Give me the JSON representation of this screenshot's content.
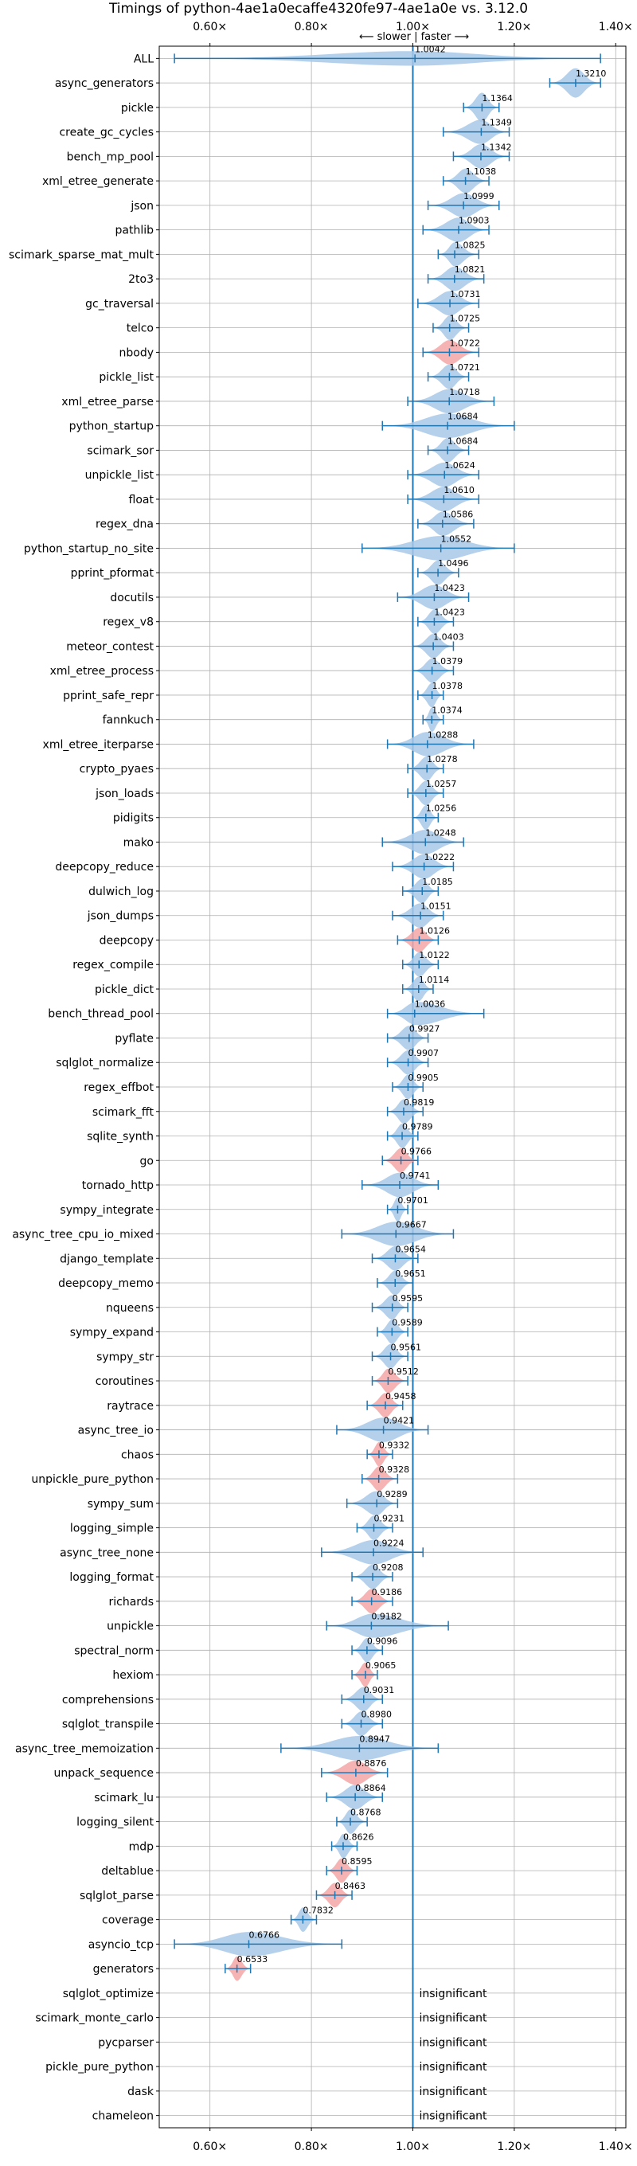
{
  "chart_data": {
    "type": "violin",
    "title": "Timings of python-4ae1a0ecaffe4320fe97-4ae1a0e vs. 3.12.0",
    "subtitle": "⟵ slower | faster ⟶",
    "xlim": [
      0.5,
      1.42
    ],
    "xticks": [
      0.6,
      0.8,
      1.0,
      1.2,
      1.4
    ],
    "xtick_labels": [
      "0.60×",
      "0.80×",
      "1.00×",
      "1.20×",
      "1.40×"
    ],
    "reference_line": 1.0,
    "grid": true,
    "colors": {
      "faster": "#a8c8e8",
      "slower": "#f4a6a6",
      "line": "#1f77b4"
    },
    "insignificant_label": "insignificant",
    "benchmarks": [
      {
        "name": "ALL",
        "value": "1.0042",
        "mean": 1.0042,
        "min": 0.53,
        "max": 1.37,
        "width": 0.3,
        "color": "faster"
      },
      {
        "name": "async_generators",
        "value": "1.3210",
        "mean": 1.321,
        "min": 1.27,
        "max": 1.37,
        "width": 0.6,
        "color": "faster"
      },
      {
        "name": "pickle",
        "value": "1.1364",
        "mean": 1.1364,
        "min": 1.1,
        "max": 1.17,
        "width": 0.6,
        "color": "faster"
      },
      {
        "name": "create_gc_cycles",
        "value": "1.1349",
        "mean": 1.1349,
        "min": 1.06,
        "max": 1.19,
        "width": 0.5,
        "color": "faster"
      },
      {
        "name": "bench_mp_pool",
        "value": "1.1342",
        "mean": 1.1342,
        "min": 1.08,
        "max": 1.19,
        "width": 0.5,
        "color": "faster"
      },
      {
        "name": "xml_etree_generate",
        "value": "1.1038",
        "mean": 1.1038,
        "min": 1.06,
        "max": 1.15,
        "width": 0.5,
        "color": "faster"
      },
      {
        "name": "json",
        "value": "1.0999",
        "mean": 1.0999,
        "min": 1.03,
        "max": 1.17,
        "width": 0.5,
        "color": "faster"
      },
      {
        "name": "pathlib",
        "value": "1.0903",
        "mean": 1.0903,
        "min": 1.02,
        "max": 1.15,
        "width": 0.5,
        "color": "faster"
      },
      {
        "name": "scimark_sparse_mat_mult",
        "value": "1.0825",
        "mean": 1.0825,
        "min": 1.05,
        "max": 1.13,
        "width": 0.5,
        "color": "faster"
      },
      {
        "name": "2to3",
        "value": "1.0821",
        "mean": 1.0821,
        "min": 1.03,
        "max": 1.14,
        "width": 0.5,
        "color": "faster"
      },
      {
        "name": "gc_traversal",
        "value": "1.0731",
        "mean": 1.0731,
        "min": 1.01,
        "max": 1.13,
        "width": 0.5,
        "color": "faster"
      },
      {
        "name": "telco",
        "value": "1.0725",
        "mean": 1.0725,
        "min": 1.04,
        "max": 1.11,
        "width": 0.5,
        "color": "faster"
      },
      {
        "name": "nbody",
        "value": "1.0722",
        "mean": 1.0722,
        "min": 1.02,
        "max": 1.13,
        "width": 0.5,
        "color": "slower"
      },
      {
        "name": "pickle_list",
        "value": "1.0721",
        "mean": 1.0721,
        "min": 1.03,
        "max": 1.11,
        "width": 0.5,
        "color": "faster"
      },
      {
        "name": "xml_etree_parse",
        "value": "1.0718",
        "mean": 1.0718,
        "min": 0.99,
        "max": 1.16,
        "width": 0.5,
        "color": "faster"
      },
      {
        "name": "python_startup",
        "value": "1.0684",
        "mean": 1.0684,
        "min": 0.94,
        "max": 1.2,
        "width": 0.5,
        "color": "faster"
      },
      {
        "name": "scimark_sor",
        "value": "1.0684",
        "mean": 1.0684,
        "min": 1.03,
        "max": 1.11,
        "width": 0.5,
        "color": "faster"
      },
      {
        "name": "unpickle_list",
        "value": "1.0624",
        "mean": 1.0624,
        "min": 0.99,
        "max": 1.13,
        "width": 0.5,
        "color": "faster"
      },
      {
        "name": "float",
        "value": "1.0610",
        "mean": 1.061,
        "min": 0.99,
        "max": 1.13,
        "width": 0.5,
        "color": "faster"
      },
      {
        "name": "regex_dna",
        "value": "1.0586",
        "mean": 1.0586,
        "min": 1.01,
        "max": 1.12,
        "width": 0.5,
        "color": "faster"
      },
      {
        "name": "python_startup_no_site",
        "value": "1.0552",
        "mean": 1.0552,
        "min": 0.9,
        "max": 1.2,
        "width": 0.5,
        "color": "faster"
      },
      {
        "name": "pprint_pformat",
        "value": "1.0496",
        "mean": 1.0496,
        "min": 1.01,
        "max": 1.09,
        "width": 0.5,
        "color": "faster"
      },
      {
        "name": "docutils",
        "value": "1.0423",
        "mean": 1.0423,
        "min": 0.97,
        "max": 1.11,
        "width": 0.5,
        "color": "faster"
      },
      {
        "name": "regex_v8",
        "value": "1.0423",
        "mean": 1.0423,
        "min": 1.01,
        "max": 1.08,
        "width": 0.5,
        "color": "faster"
      },
      {
        "name": "meteor_contest",
        "value": "1.0403",
        "mean": 1.0403,
        "min": 1.0,
        "max": 1.08,
        "width": 0.5,
        "color": "faster"
      },
      {
        "name": "xml_etree_process",
        "value": "1.0379",
        "mean": 1.0379,
        "min": 1.0,
        "max": 1.08,
        "width": 0.5,
        "color": "faster"
      },
      {
        "name": "pprint_safe_repr",
        "value": "1.0378",
        "mean": 1.0378,
        "min": 1.01,
        "max": 1.06,
        "width": 0.5,
        "color": "faster"
      },
      {
        "name": "fannkuch",
        "value": "1.0374",
        "mean": 1.0374,
        "min": 1.02,
        "max": 1.06,
        "width": 0.5,
        "color": "faster"
      },
      {
        "name": "xml_etree_iterparse",
        "value": "1.0288",
        "mean": 1.0288,
        "min": 0.95,
        "max": 1.12,
        "width": 0.5,
        "color": "faster"
      },
      {
        "name": "crypto_pyaes",
        "value": "1.0278",
        "mean": 1.0278,
        "min": 0.99,
        "max": 1.06,
        "width": 0.5,
        "color": "faster"
      },
      {
        "name": "json_loads",
        "value": "1.0257",
        "mean": 1.0257,
        "min": 0.99,
        "max": 1.06,
        "width": 0.5,
        "color": "faster"
      },
      {
        "name": "pidigits",
        "value": "1.0256",
        "mean": 1.0256,
        "min": 1.0,
        "max": 1.05,
        "width": 0.5,
        "color": "faster"
      },
      {
        "name": "mako",
        "value": "1.0248",
        "mean": 1.0248,
        "min": 0.94,
        "max": 1.1,
        "width": 0.5,
        "color": "faster"
      },
      {
        "name": "deepcopy_reduce",
        "value": "1.0222",
        "mean": 1.0222,
        "min": 0.96,
        "max": 1.08,
        "width": 0.5,
        "color": "faster"
      },
      {
        "name": "dulwich_log",
        "value": "1.0185",
        "mean": 1.0185,
        "min": 0.98,
        "max": 1.05,
        "width": 0.5,
        "color": "faster"
      },
      {
        "name": "json_dumps",
        "value": "1.0151",
        "mean": 1.0151,
        "min": 0.96,
        "max": 1.06,
        "width": 0.5,
        "color": "faster"
      },
      {
        "name": "deepcopy",
        "value": "1.0126",
        "mean": 1.0126,
        "min": 0.97,
        "max": 1.05,
        "width": 0.5,
        "color": "slower"
      },
      {
        "name": "regex_compile",
        "value": "1.0122",
        "mean": 1.0122,
        "min": 0.98,
        "max": 1.05,
        "width": 0.5,
        "color": "faster"
      },
      {
        "name": "pickle_dict",
        "value": "1.0114",
        "mean": 1.0114,
        "min": 0.98,
        "max": 1.04,
        "width": 0.5,
        "color": "faster"
      },
      {
        "name": "bench_thread_pool",
        "value": "1.0036",
        "mean": 1.0036,
        "min": 0.95,
        "max": 1.14,
        "width": 0.5,
        "color": "faster"
      },
      {
        "name": "pyflate",
        "value": "0.9927",
        "mean": 0.9927,
        "min": 0.95,
        "max": 1.03,
        "width": 0.5,
        "color": "faster"
      },
      {
        "name": "sqlglot_normalize",
        "value": "0.9907",
        "mean": 0.9907,
        "min": 0.95,
        "max": 1.03,
        "width": 0.5,
        "color": "faster"
      },
      {
        "name": "regex_effbot",
        "value": "0.9905",
        "mean": 0.9905,
        "min": 0.96,
        "max": 1.02,
        "width": 0.5,
        "color": "faster"
      },
      {
        "name": "scimark_fft",
        "value": "0.9819",
        "mean": 0.9819,
        "min": 0.95,
        "max": 1.02,
        "width": 0.5,
        "color": "faster"
      },
      {
        "name": "sqlite_synth",
        "value": "0.9789",
        "mean": 0.9789,
        "min": 0.95,
        "max": 1.01,
        "width": 0.5,
        "color": "faster"
      },
      {
        "name": "go",
        "value": "0.9766",
        "mean": 0.9766,
        "min": 0.94,
        "max": 1.01,
        "width": 0.5,
        "color": "slower"
      },
      {
        "name": "tornado_http",
        "value": "0.9741",
        "mean": 0.9741,
        "min": 0.9,
        "max": 1.05,
        "width": 0.5,
        "color": "faster"
      },
      {
        "name": "sympy_integrate",
        "value": "0.9701",
        "mean": 0.9701,
        "min": 0.95,
        "max": 0.99,
        "width": 0.5,
        "color": "faster"
      },
      {
        "name": "async_tree_cpu_io_mixed",
        "value": "0.9667",
        "mean": 0.9667,
        "min": 0.86,
        "max": 1.08,
        "width": 0.5,
        "color": "faster"
      },
      {
        "name": "django_template",
        "value": "0.9654",
        "mean": 0.9654,
        "min": 0.92,
        "max": 1.01,
        "width": 0.5,
        "color": "faster"
      },
      {
        "name": "deepcopy_memo",
        "value": "0.9651",
        "mean": 0.9651,
        "min": 0.93,
        "max": 1.0,
        "width": 0.5,
        "color": "faster"
      },
      {
        "name": "nqueens",
        "value": "0.9595",
        "mean": 0.9595,
        "min": 0.92,
        "max": 0.99,
        "width": 0.5,
        "color": "faster"
      },
      {
        "name": "sympy_expand",
        "value": "0.9589",
        "mean": 0.9589,
        "min": 0.93,
        "max": 0.99,
        "width": 0.5,
        "color": "faster"
      },
      {
        "name": "sympy_str",
        "value": "0.9561",
        "mean": 0.9561,
        "min": 0.92,
        "max": 0.99,
        "width": 0.5,
        "color": "faster"
      },
      {
        "name": "coroutines",
        "value": "0.9512",
        "mean": 0.9512,
        "min": 0.92,
        "max": 0.99,
        "width": 0.5,
        "color": "slower"
      },
      {
        "name": "raytrace",
        "value": "0.9458",
        "mean": 0.9458,
        "min": 0.91,
        "max": 0.98,
        "width": 0.5,
        "color": "slower"
      },
      {
        "name": "async_tree_io",
        "value": "0.9421",
        "mean": 0.9421,
        "min": 0.85,
        "max": 1.03,
        "width": 0.5,
        "color": "faster"
      },
      {
        "name": "chaos",
        "value": "0.9332",
        "mean": 0.9332,
        "min": 0.91,
        "max": 0.96,
        "width": 0.5,
        "color": "slower"
      },
      {
        "name": "unpickle_pure_python",
        "value": "0.9328",
        "mean": 0.9328,
        "min": 0.9,
        "max": 0.97,
        "width": 0.5,
        "color": "slower"
      },
      {
        "name": "sympy_sum",
        "value": "0.9289",
        "mean": 0.9289,
        "min": 0.87,
        "max": 0.97,
        "width": 0.5,
        "color": "faster"
      },
      {
        "name": "logging_simple",
        "value": "0.9231",
        "mean": 0.9231,
        "min": 0.89,
        "max": 0.96,
        "width": 0.5,
        "color": "faster"
      },
      {
        "name": "async_tree_none",
        "value": "0.9224",
        "mean": 0.9224,
        "min": 0.82,
        "max": 1.02,
        "width": 0.5,
        "color": "faster"
      },
      {
        "name": "logging_format",
        "value": "0.9208",
        "mean": 0.9208,
        "min": 0.88,
        "max": 0.96,
        "width": 0.5,
        "color": "faster"
      },
      {
        "name": "richards",
        "value": "0.9186",
        "mean": 0.9186,
        "min": 0.88,
        "max": 0.96,
        "width": 0.5,
        "color": "slower"
      },
      {
        "name": "unpickle",
        "value": "0.9182",
        "mean": 0.9182,
        "min": 0.83,
        "max": 1.07,
        "width": 0.5,
        "color": "faster"
      },
      {
        "name": "spectral_norm",
        "value": "0.9096",
        "mean": 0.9096,
        "min": 0.88,
        "max": 0.94,
        "width": 0.5,
        "color": "faster"
      },
      {
        "name": "hexiom",
        "value": "0.9065",
        "mean": 0.9065,
        "min": 0.88,
        "max": 0.93,
        "width": 0.5,
        "color": "slower"
      },
      {
        "name": "comprehensions",
        "value": "0.9031",
        "mean": 0.9031,
        "min": 0.86,
        "max": 0.94,
        "width": 0.5,
        "color": "faster"
      },
      {
        "name": "sqlglot_transpile",
        "value": "0.8980",
        "mean": 0.898,
        "min": 0.86,
        "max": 0.94,
        "width": 0.5,
        "color": "faster"
      },
      {
        "name": "async_tree_memoization",
        "value": "0.8947",
        "mean": 0.8947,
        "min": 0.74,
        "max": 1.05,
        "width": 0.5,
        "color": "faster"
      },
      {
        "name": "unpack_sequence",
        "value": "0.8876",
        "mean": 0.8876,
        "min": 0.82,
        "max": 0.95,
        "width": 0.5,
        "color": "slower"
      },
      {
        "name": "scimark_lu",
        "value": "0.8864",
        "mean": 0.8864,
        "min": 0.83,
        "max": 0.94,
        "width": 0.5,
        "color": "faster"
      },
      {
        "name": "logging_silent",
        "value": "0.8768",
        "mean": 0.8768,
        "min": 0.85,
        "max": 0.91,
        "width": 0.5,
        "color": "faster"
      },
      {
        "name": "mdp",
        "value": "0.8626",
        "mean": 0.8626,
        "min": 0.84,
        "max": 0.89,
        "width": 0.5,
        "color": "faster"
      },
      {
        "name": "deltablue",
        "value": "0.8595",
        "mean": 0.8595,
        "min": 0.83,
        "max": 0.89,
        "width": 0.5,
        "color": "slower"
      },
      {
        "name": "sqlglot_parse",
        "value": "0.8463",
        "mean": 0.8463,
        "min": 0.81,
        "max": 0.88,
        "width": 0.5,
        "color": "slower"
      },
      {
        "name": "coverage",
        "value": "0.7832",
        "mean": 0.7832,
        "min": 0.76,
        "max": 0.81,
        "width": 0.5,
        "color": "faster"
      },
      {
        "name": "asyncio_tcp",
        "value": "0.6766",
        "mean": 0.6766,
        "min": 0.53,
        "max": 0.86,
        "width": 0.5,
        "color": "faster"
      },
      {
        "name": "generators",
        "value": "0.6533",
        "mean": 0.6533,
        "min": 0.63,
        "max": 0.68,
        "width": 0.5,
        "color": "slower"
      },
      {
        "name": "sqlglot_optimize",
        "insignificant": true
      },
      {
        "name": "scimark_monte_carlo",
        "insignificant": true
      },
      {
        "name": "pycparser",
        "insignificant": true
      },
      {
        "name": "pickle_pure_python",
        "insignificant": true
      },
      {
        "name": "dask",
        "insignificant": true
      },
      {
        "name": "chameleon",
        "insignificant": true
      }
    ]
  }
}
